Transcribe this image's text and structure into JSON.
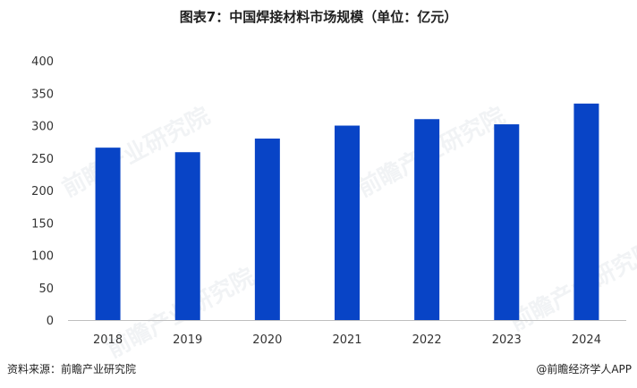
{
  "title": "图表7：中国焊接材料市场规模（单位：亿元）",
  "source": "资料来源：前瞻产业研究院",
  "brand": "@前瞻经济学人APP",
  "watermark": "前瞻产业研究院",
  "colors": {
    "bar": "#0844c6",
    "axis": "#bfbfbf"
  },
  "chart_data": {
    "type": "bar",
    "categories": [
      "2018",
      "2019",
      "2020",
      "2021",
      "2022",
      "2023",
      "2024"
    ],
    "values": [
      266,
      259,
      280,
      300,
      310,
      302,
      334
    ],
    "yticks": [
      0,
      50,
      100,
      150,
      200,
      250,
      300,
      350,
      400
    ],
    "ylim": [
      0,
      400
    ],
    "grid": false,
    "legend": "none"
  }
}
